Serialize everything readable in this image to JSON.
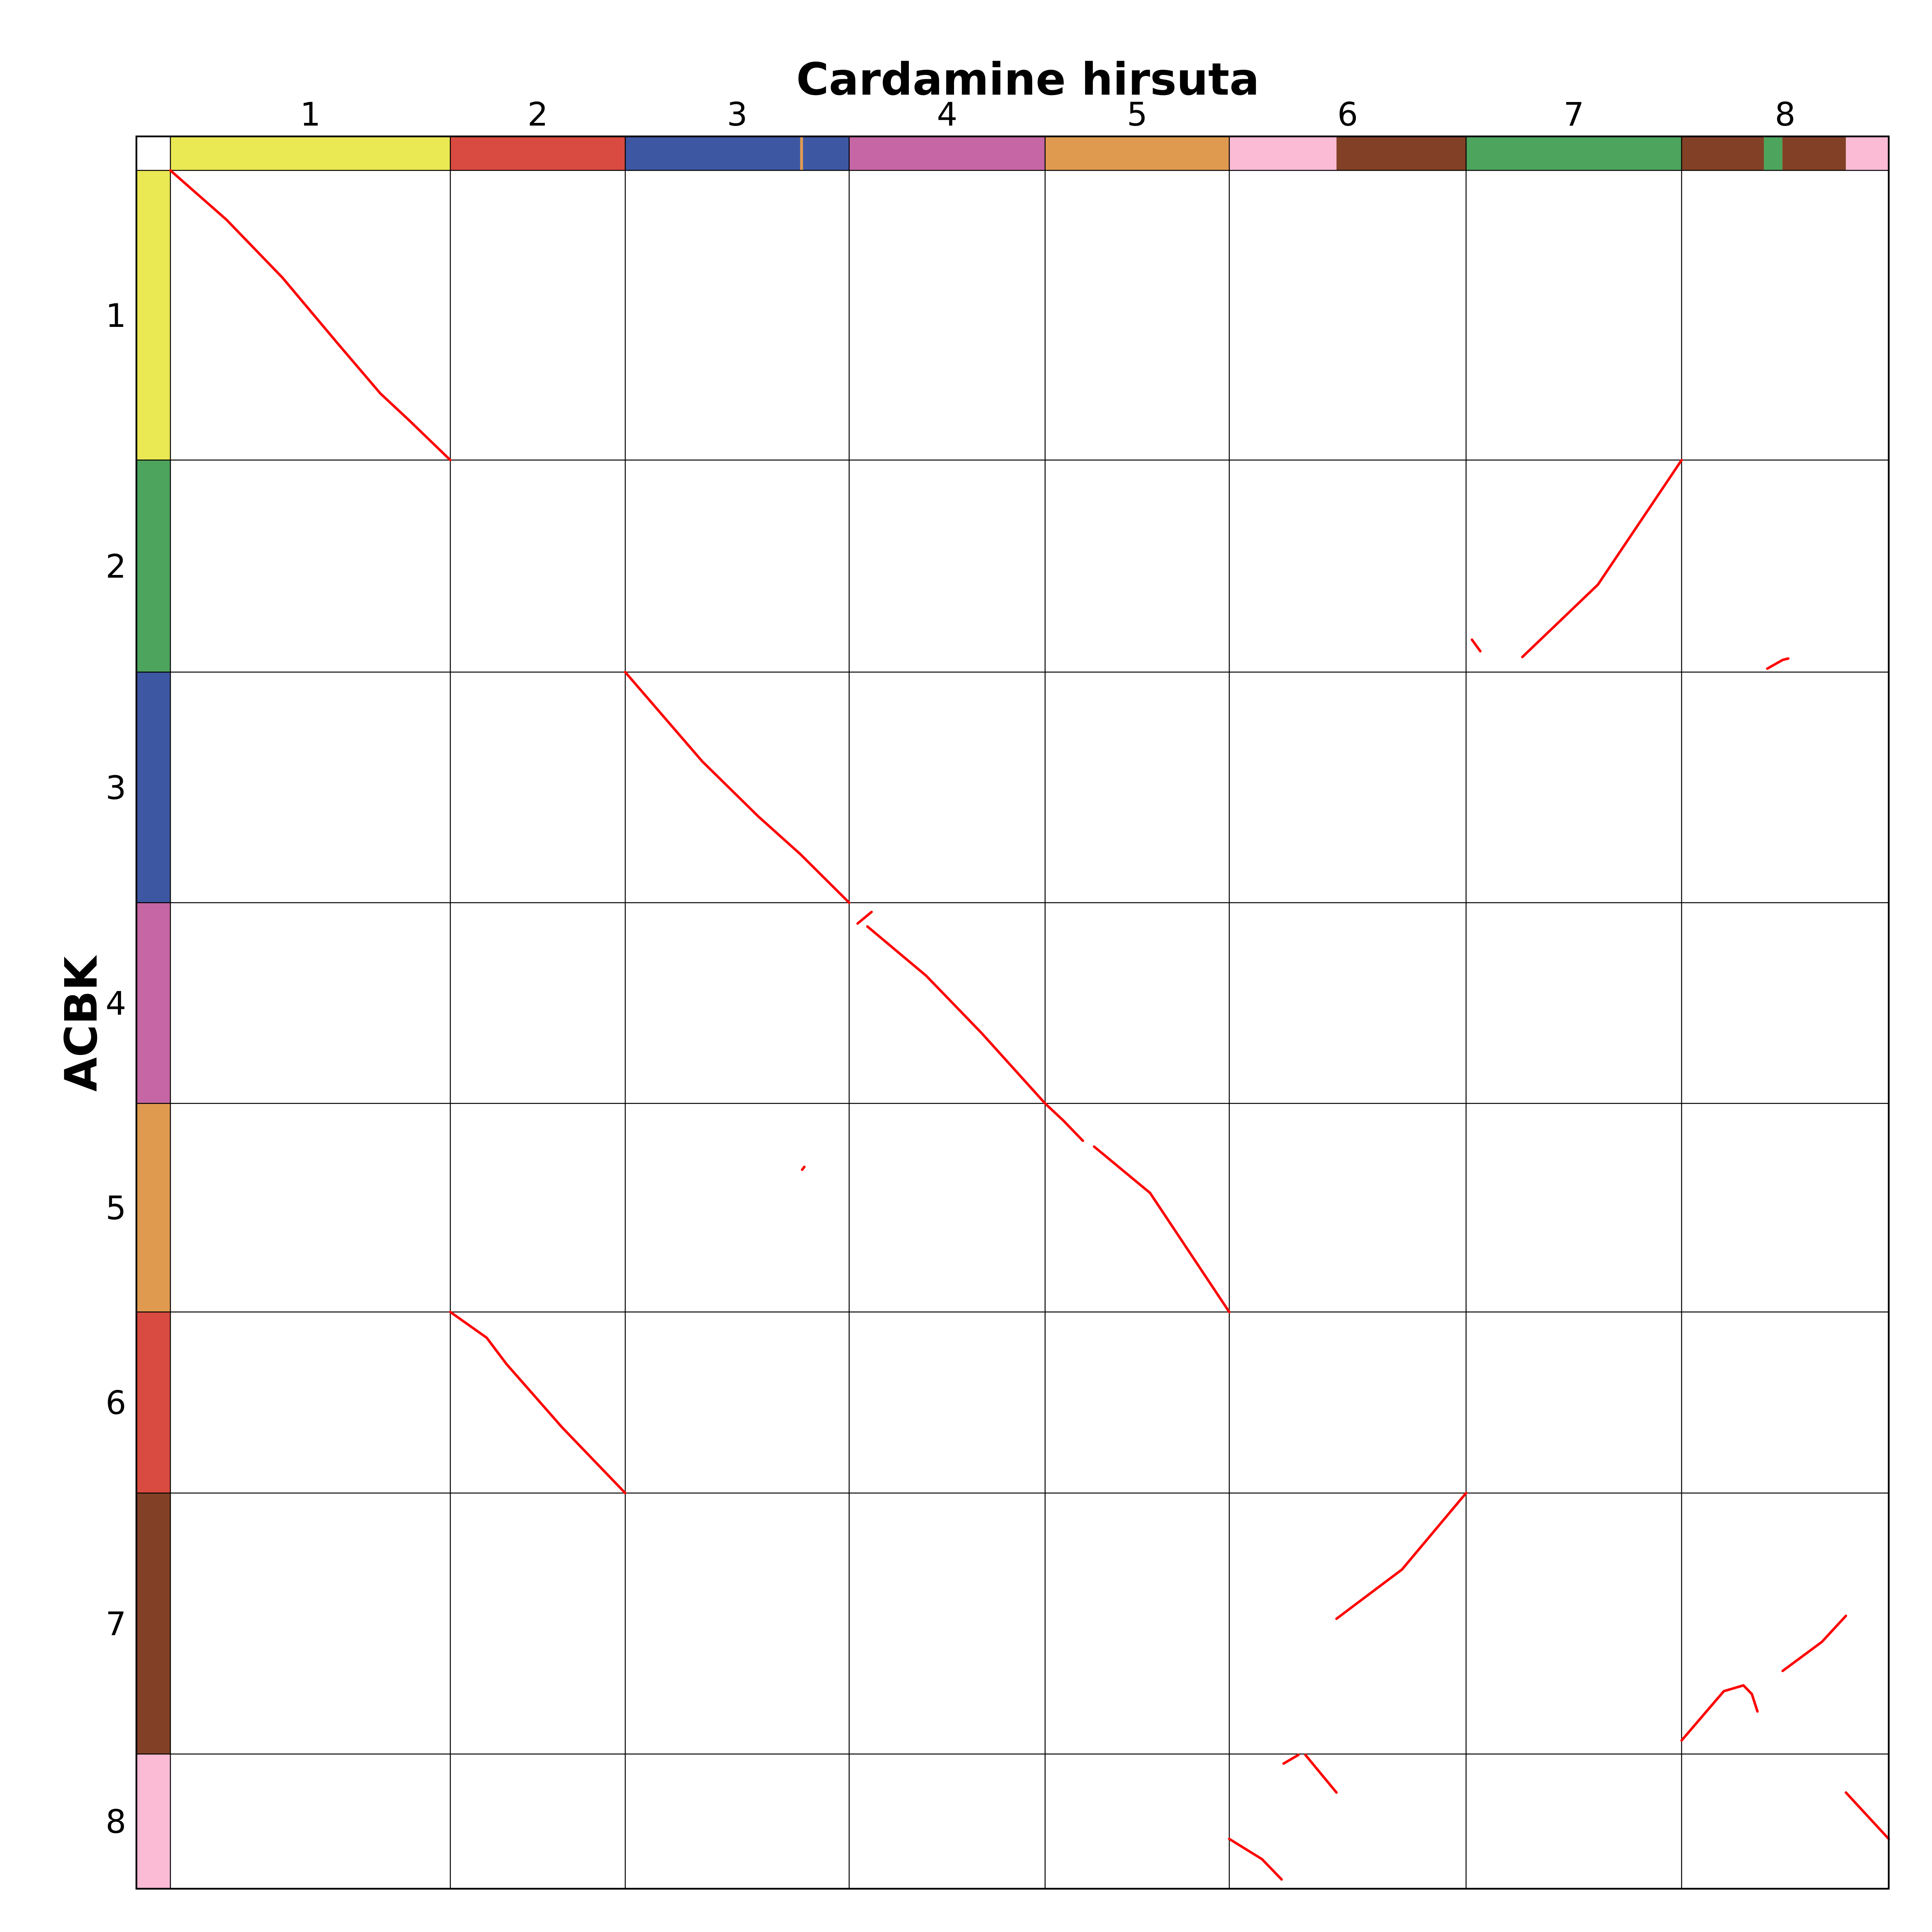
{
  "chart_data": {
    "type": "scatter",
    "title": "Cardamine hirsuta",
    "xlabel": "Cardamine hirsuta",
    "ylabel": "ACBK",
    "dot_color": "#ff0000",
    "grid": true,
    "x_chromosomes": [
      {
        "label": "1",
        "start": 0.0,
        "end": 1.0
      },
      {
        "label": "2",
        "start": 1.0,
        "end": 1.625
      },
      {
        "label": "3",
        "start": 1.625,
        "end": 2.425
      },
      {
        "label": "4",
        "start": 2.425,
        "end": 3.125
      },
      {
        "label": "5",
        "start": 3.125,
        "end": 3.783
      },
      {
        "label": "6",
        "start": 3.783,
        "end": 4.629
      },
      {
        "label": "7",
        "start": 4.629,
        "end": 5.399
      },
      {
        "label": "8",
        "start": 5.399,
        "end": 6.139
      }
    ],
    "y_blocks": [
      {
        "label": "1",
        "start": 0.0,
        "end": 1.0
      },
      {
        "label": "2",
        "start": 1.0,
        "end": 1.732
      },
      {
        "label": "3",
        "start": 1.732,
        "end": 2.528
      },
      {
        "label": "4",
        "start": 2.528,
        "end": 3.221
      },
      {
        "label": "5",
        "start": 3.221,
        "end": 3.941
      },
      {
        "label": "6",
        "start": 3.941,
        "end": 4.566
      },
      {
        "label": "7",
        "start": 4.566,
        "end": 5.467
      },
      {
        "label": "8",
        "start": 5.467,
        "end": 5.932
      }
    ],
    "x_color_bar": [
      {
        "start": 0.0,
        "end": 1.0,
        "color": "#eae853"
      },
      {
        "start": 1.0,
        "end": 1.625,
        "color": "#d94a40"
      },
      {
        "start": 1.625,
        "end": 2.25,
        "color": "#3d57a2"
      },
      {
        "start": 2.25,
        "end": 2.26,
        "color": "#e09a50"
      },
      {
        "start": 2.26,
        "end": 2.425,
        "color": "#3d57a2"
      },
      {
        "start": 2.425,
        "end": 3.125,
        "color": "#c666a4"
      },
      {
        "start": 3.125,
        "end": 3.783,
        "color": "#e09a50"
      },
      {
        "start": 3.783,
        "end": 4.166,
        "color": "#fcbbd5"
      },
      {
        "start": 4.166,
        "end": 4.629,
        "color": "#824126"
      },
      {
        "start": 4.629,
        "end": 5.399,
        "color": "#4da45c"
      },
      {
        "start": 5.399,
        "end": 5.693,
        "color": "#824126"
      },
      {
        "start": 5.693,
        "end": 5.759,
        "color": "#4da45c"
      },
      {
        "start": 5.759,
        "end": 5.986,
        "color": "#824126"
      },
      {
        "start": 5.986,
        "end": 6.139,
        "color": "#fcbbd5"
      }
    ],
    "y_color_bar": [
      {
        "start": 0.0,
        "end": 1.0,
        "color": "#eae853"
      },
      {
        "start": 1.0,
        "end": 1.732,
        "color": "#4da45c"
      },
      {
        "start": 1.732,
        "end": 2.528,
        "color": "#3d57a2"
      },
      {
        "start": 2.528,
        "end": 3.221,
        "color": "#c666a4"
      },
      {
        "start": 3.221,
        "end": 3.941,
        "color": "#e09a50"
      },
      {
        "start": 3.941,
        "end": 4.566,
        "color": "#d94a40"
      },
      {
        "start": 4.566,
        "end": 5.467,
        "color": "#824126"
      },
      {
        "start": 5.467,
        "end": 5.932,
        "color": "#fcbbd5"
      }
    ],
    "segments": [
      [
        [
          0.0,
          0.0
        ],
        [
          0.2,
          0.17
        ],
        [
          0.4,
          0.37
        ],
        [
          0.6,
          0.6
        ],
        [
          0.75,
          0.77
        ],
        [
          0.85,
          0.86
        ],
        [
          1.0,
          1.0
        ]
      ],
      [
        [
          4.83,
          1.68
        ],
        [
          5.1,
          1.43
        ],
        [
          5.399,
          1.0
        ]
      ],
      [
        [
          4.65,
          1.62
        ],
        [
          4.68,
          1.66
        ]
      ],
      [
        [
          5.705,
          1.72
        ],
        [
          5.76,
          1.69
        ],
        [
          5.78,
          1.685
        ]
      ],
      [
        [
          1.625,
          1.732
        ],
        [
          1.9,
          2.04
        ],
        [
          2.1,
          2.23
        ],
        [
          2.25,
          2.36
        ],
        [
          2.425,
          2.528
        ]
      ],
      [
        [
          2.455,
          2.6
        ],
        [
          2.505,
          2.56
        ]
      ],
      [
        [
          2.49,
          2.61
        ],
        [
          2.7,
          2.78
        ],
        [
          2.9,
          2.98
        ],
        [
          3.125,
          3.221
        ]
      ],
      [
        [
          3.125,
          3.221
        ],
        [
          3.19,
          3.28
        ],
        [
          3.26,
          3.35
        ]
      ],
      [
        [
          3.3,
          3.37
        ],
        [
          3.5,
          3.53
        ],
        [
          3.783,
          3.941
        ]
      ],
      [
        [
          2.257,
          3.45
        ],
        [
          2.265,
          3.44
        ]
      ],
      [
        [
          1.0,
          3.941
        ],
        [
          1.13,
          4.03
        ],
        [
          1.2,
          4.12
        ],
        [
          1.4,
          4.34
        ],
        [
          1.625,
          4.566
        ]
      ],
      [
        [
          4.166,
          5.0
        ],
        [
          4.4,
          4.83
        ],
        [
          4.629,
          4.566
        ]
      ],
      [
        [
          5.399,
          5.42
        ],
        [
          5.55,
          5.25
        ],
        [
          5.62,
          5.23
        ],
        [
          5.65,
          5.26
        ],
        [
          5.67,
          5.32
        ]
      ],
      [
        [
          5.76,
          5.18
        ],
        [
          5.9,
          5.08
        ],
        [
          5.986,
          4.99
        ]
      ],
      [
        [
          3.783,
          5.76
        ],
        [
          3.9,
          5.83
        ],
        [
          3.97,
          5.9
        ]
      ],
      [
        [
          3.977,
          5.5
        ],
        [
          4.03,
          5.47
        ]
      ],
      [
        [
          4.055,
          5.47
        ],
        [
          4.166,
          5.6
        ]
      ],
      [
        [
          5.986,
          5.6
        ],
        [
          6.139,
          5.76
        ]
      ]
    ]
  }
}
